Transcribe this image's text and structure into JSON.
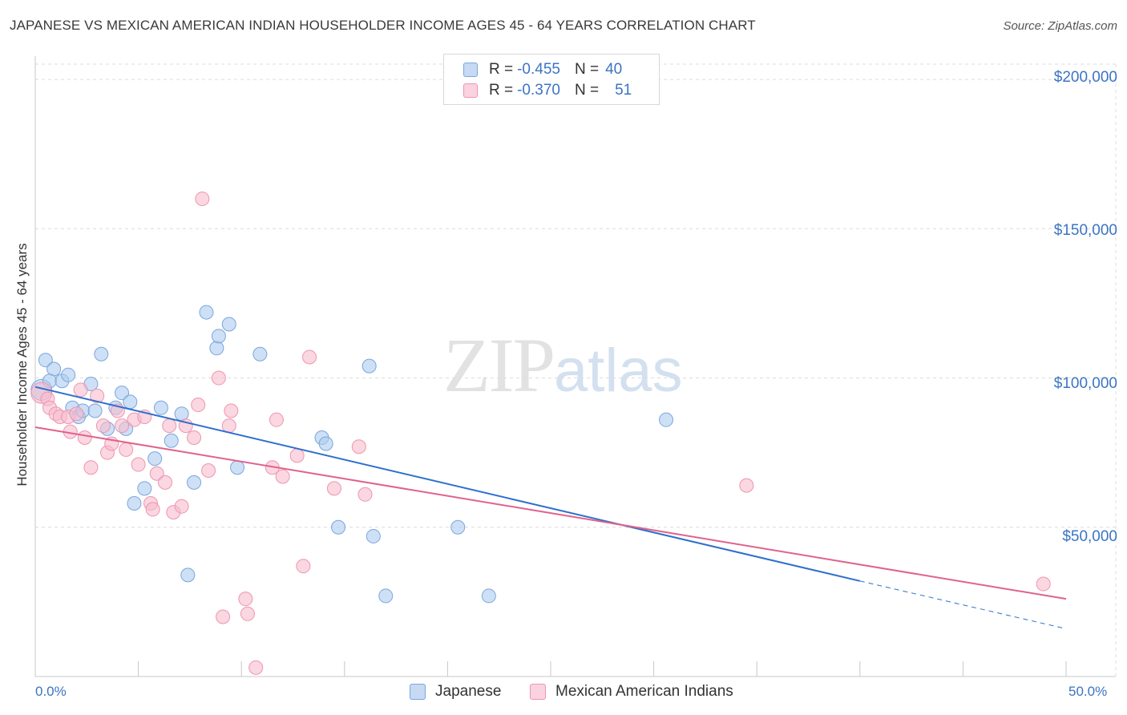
{
  "title": "JAPANESE VS MEXICAN AMERICAN INDIAN HOUSEHOLDER INCOME AGES 45 - 64 YEARS CORRELATION CHART",
  "source": "Source: ZipAtlas.com",
  "watermark": {
    "zip": "ZIP",
    "atlas": "atlas"
  },
  "legend_top": [
    {
      "r_label": "R = ",
      "r_value": "-0.455",
      "n_label": "N = ",
      "n_value": "40"
    },
    {
      "r_label": "R = ",
      "r_value": "-0.370",
      "n_label": "N = ",
      "n_value": "51"
    }
  ],
  "legend_bottom": [
    "Japanese",
    "Mexican American Indians"
  ],
  "colors": {
    "japanese_fill": "#aecbf0",
    "japanese_stroke": "#7aa6dd",
    "japanese_line": "#2d6fce",
    "mexican_fill": "#f7bccd",
    "mexican_stroke": "#ee95b0",
    "mexican_line": "#e0628c",
    "grid": "#dcdcdc",
    "axis_text": "#3b74c4"
  },
  "chart_data": {
    "type": "scatter",
    "title": "JAPANESE VS MEXICAN AMERICAN INDIAN HOUSEHOLDER INCOME AGES 45 - 64 YEARS CORRELATION CHART",
    "xlabel": "",
    "ylabel": "Householder Income Ages 45 - 64 years",
    "xlim": [
      0,
      50
    ],
    "ylim": [
      0,
      207000
    ],
    "x_tick_labels": [
      "0.0%",
      "50.0%"
    ],
    "y_ticks": [
      50000,
      100000,
      150000,
      200000
    ],
    "y_tick_labels": [
      "$50,000",
      "$100,000",
      "$150,000",
      "$200,000"
    ],
    "grid": true,
    "legend_position": "top-center",
    "series": [
      {
        "name": "Japanese",
        "points": [
          [
            0.3,
            96000
          ],
          [
            0.5,
            106000
          ],
          [
            0.9,
            103000
          ],
          [
            0.7,
            99000
          ],
          [
            1.3,
            99000
          ],
          [
            1.6,
            101000
          ],
          [
            1.8,
            90000
          ],
          [
            2.1,
            87000
          ],
          [
            2.3,
            89000
          ],
          [
            2.7,
            98000
          ],
          [
            2.9,
            89000
          ],
          [
            3.2,
            108000
          ],
          [
            3.5,
            83000
          ],
          [
            3.9,
            90000
          ],
          [
            4.2,
            95000
          ],
          [
            4.4,
            83000
          ],
          [
            4.6,
            92000
          ],
          [
            4.8,
            58000
          ],
          [
            5.3,
            63000
          ],
          [
            5.8,
            73000
          ],
          [
            6.1,
            90000
          ],
          [
            6.6,
            79000
          ],
          [
            7.1,
            88000
          ],
          [
            7.4,
            34000
          ],
          [
            7.7,
            65000
          ],
          [
            8.3,
            122000
          ],
          [
            8.8,
            110000
          ],
          [
            8.9,
            114000
          ],
          [
            9.4,
            118000
          ],
          [
            9.8,
            70000
          ],
          [
            10.9,
            108000
          ],
          [
            13.9,
            80000
          ],
          [
            14.1,
            78000
          ],
          [
            14.7,
            50000
          ],
          [
            16.2,
            104000
          ],
          [
            16.4,
            47000
          ],
          [
            17.0,
            27000
          ],
          [
            20.5,
            50000
          ],
          [
            22.0,
            27000
          ],
          [
            30.6,
            86000
          ]
        ],
        "trend": {
          "x0": 0,
          "y0": 97000,
          "x1": 40,
          "y1": 32000,
          "dashed_to_x": 50,
          "dashed_to_y": 16000
        }
      },
      {
        "name": "Mexican American Indians",
        "points": [
          [
            0.3,
            95000
          ],
          [
            0.6,
            93000
          ],
          [
            0.7,
            90000
          ],
          [
            1.0,
            88000
          ],
          [
            1.2,
            87000
          ],
          [
            1.6,
            87000
          ],
          [
            1.7,
            82000
          ],
          [
            2.0,
            88000
          ],
          [
            2.2,
            96000
          ],
          [
            2.4,
            80000
          ],
          [
            2.7,
            70000
          ],
          [
            3.0,
            94000
          ],
          [
            3.3,
            84000
          ],
          [
            3.5,
            75000
          ],
          [
            3.7,
            78000
          ],
          [
            4.0,
            89000
          ],
          [
            4.2,
            84000
          ],
          [
            4.4,
            76000
          ],
          [
            4.8,
            86000
          ],
          [
            5.0,
            71000
          ],
          [
            5.3,
            87000
          ],
          [
            5.6,
            58000
          ],
          [
            5.7,
            56000
          ],
          [
            5.9,
            68000
          ],
          [
            6.3,
            65000
          ],
          [
            6.5,
            84000
          ],
          [
            6.7,
            55000
          ],
          [
            7.1,
            57000
          ],
          [
            7.3,
            84000
          ],
          [
            7.7,
            80000
          ],
          [
            7.9,
            91000
          ],
          [
            8.1,
            160000
          ],
          [
            8.4,
            69000
          ],
          [
            8.9,
            100000
          ],
          [
            9.1,
            20000
          ],
          [
            9.4,
            84000
          ],
          [
            9.5,
            89000
          ],
          [
            10.2,
            26000
          ],
          [
            10.3,
            21000
          ],
          [
            10.7,
            3000
          ],
          [
            11.5,
            70000
          ],
          [
            11.7,
            86000
          ],
          [
            12.0,
            67000
          ],
          [
            12.7,
            74000
          ],
          [
            13.0,
            37000
          ],
          [
            13.3,
            107000
          ],
          [
            14.5,
            63000
          ],
          [
            15.7,
            77000
          ],
          [
            16.0,
            61000
          ],
          [
            34.5,
            64000
          ],
          [
            48.9,
            31000
          ]
        ],
        "trend": {
          "x0": 0,
          "y0": 83500,
          "x1": 50,
          "y1": 26000
        }
      }
    ]
  }
}
